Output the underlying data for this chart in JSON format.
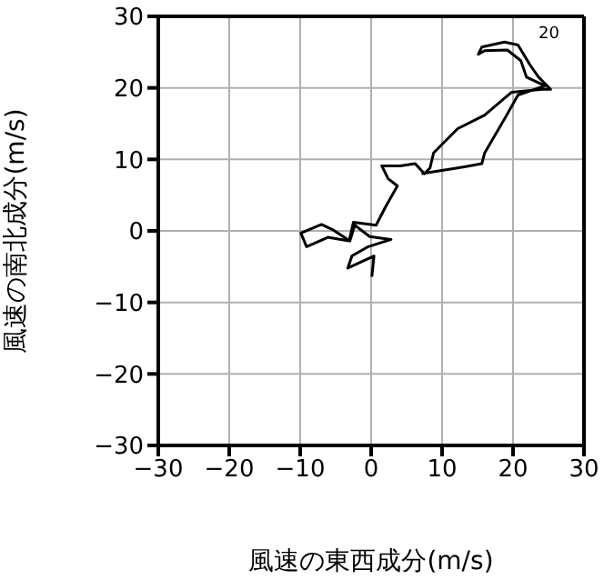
{
  "chart_data": {
    "type": "line",
    "xlabel": "風速の東西成分(m/s)",
    "ylabel": "風速の南北成分(m/s)",
    "xlim": [
      -30,
      30
    ],
    "ylim": [
      -30,
      30
    ],
    "xticks": [
      {
        "value": -30,
        "label": "−30"
      },
      {
        "value": -20,
        "label": "−20"
      },
      {
        "value": -10,
        "label": "−10"
      },
      0,
      10,
      20,
      30
    ],
    "yticks": [
      {
        "value": -30,
        "label": "−30"
      },
      {
        "value": -20,
        "label": "−20"
      },
      {
        "value": -10,
        "label": "−10"
      },
      0,
      10,
      20,
      30
    ],
    "grid": true,
    "marker": "none",
    "line_style": "solid",
    "annotations": [
      "20"
    ],
    "series": [
      {
        "color": "#000000",
        "x": [
          0.1,
          0.4,
          -3.3,
          -2.7,
          -0.4,
          2.8,
          -0.2,
          -2.3,
          -3.0,
          -5.3,
          -7.0,
          -9.9,
          -9.1,
          -6.1,
          -3.1,
          -2.5,
          0.7,
          2.0,
          3.7,
          2.4,
          1.5,
          4.1,
          6.2,
          7.5,
          8.3,
          8.8,
          12.2,
          16.0,
          19.8,
          24.1,
          25.3,
          23.6,
          22.4,
          21.5,
          20.7,
          18.8,
          15.6,
          15.1,
          16.0,
          19.2,
          21.1,
          21.9,
          24.5,
          20.7,
          19.0,
          16.0,
          15.6,
          12.2,
          7.1
        ],
        "values": [
          -6.4,
          -3.5,
          -5.2,
          -3.5,
          -2.2,
          -1.2,
          -0.8,
          0.8,
          -1.4,
          0.1,
          0.9,
          -0.3,
          -2.2,
          -0.9,
          -1.4,
          1.2,
          0.8,
          3.3,
          6.3,
          7.3,
          9.1,
          9.1,
          9.4,
          8.0,
          8.8,
          10.9,
          14.3,
          16.2,
          19.4,
          19.8,
          19.8,
          21.5,
          23.2,
          24.7,
          26.0,
          26.4,
          25.7,
          24.7,
          25.2,
          25.3,
          23.8,
          21.5,
          20.3,
          19.0,
          16.0,
          10.9,
          9.4,
          8.8,
          8.0
        ]
      }
    ]
  }
}
